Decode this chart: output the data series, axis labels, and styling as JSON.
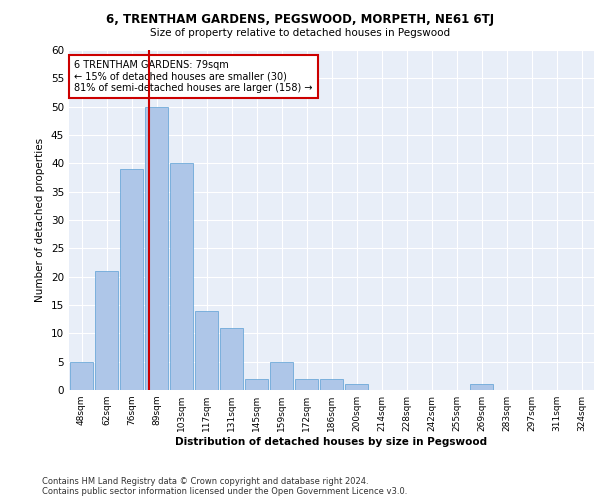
{
  "title1": "6, TRENTHAM GARDENS, PEGSWOOD, MORPETH, NE61 6TJ",
  "title2": "Size of property relative to detached houses in Pegswood",
  "xlabel": "Distribution of detached houses by size in Pegswood",
  "ylabel": "Number of detached properties",
  "bar_labels": [
    "48sqm",
    "62sqm",
    "76sqm",
    "89sqm",
    "103sqm",
    "117sqm",
    "131sqm",
    "145sqm",
    "159sqm",
    "172sqm",
    "186sqm",
    "200sqm",
    "214sqm",
    "228sqm",
    "242sqm",
    "255sqm",
    "269sqm",
    "283sqm",
    "297sqm",
    "311sqm",
    "324sqm"
  ],
  "bar_values": [
    5,
    21,
    39,
    50,
    40,
    14,
    11,
    2,
    5,
    2,
    2,
    1,
    0,
    0,
    0,
    0,
    1,
    0,
    0,
    0,
    0
  ],
  "bar_color": "#aec6e8",
  "bar_edgecolor": "#5a9fd4",
  "ylim": [
    0,
    60
  ],
  "yticks": [
    0,
    5,
    10,
    15,
    20,
    25,
    30,
    35,
    40,
    45,
    50,
    55,
    60
  ],
  "vline_x": 2.69,
  "vline_color": "#cc0000",
  "annotation_text": "6 TRENTHAM GARDENS: 79sqm\n← 15% of detached houses are smaller (30)\n81% of semi-detached houses are larger (158) →",
  "annotation_box_edgecolor": "#cc0000",
  "footnote1": "Contains HM Land Registry data © Crown copyright and database right 2024.",
  "footnote2": "Contains public sector information licensed under the Open Government Licence v3.0.",
  "bg_color": "#e8eef8",
  "grid_color": "#ffffff"
}
